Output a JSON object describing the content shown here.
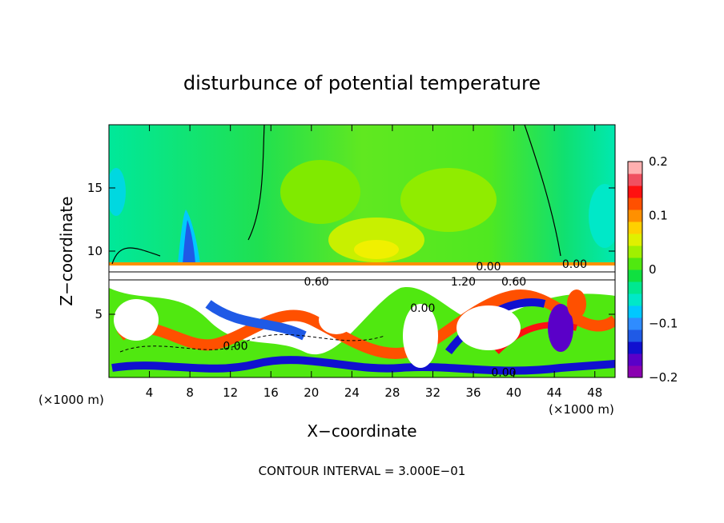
{
  "chart_data": {
    "type": "heatmap",
    "title": "disturbunce of potential temperature",
    "xlabel": "X−coordinate",
    "ylabel": "Z−coordinate",
    "x_unit": "(×1000 m)",
    "x_unit_right": "(×1000 m)",
    "y_unit": "(×1000 m)",
    "xlim": [
      0,
      50
    ],
    "ylim": [
      0,
      20
    ],
    "x_ticks": [
      4,
      8,
      12,
      16,
      20,
      24,
      28,
      32,
      36,
      40,
      44,
      48
    ],
    "y_ticks": [
      5,
      10,
      15
    ],
    "colorbar": {
      "range": [
        -0.2,
        0.2
      ],
      "ticks": [
        0.2,
        0.1,
        0,
        -0.1,
        -0.2
      ],
      "tick_labels": [
        "0.2",
        "0.1",
        "0",
        "−0.1",
        "−0.2"
      ],
      "colors": [
        "#8a00b0",
        "#5a00c8",
        "#1010d0",
        "#1f5ae6",
        "#2f8cff",
        "#00c8ff",
        "#00e8c8",
        "#00e890",
        "#10e040",
        "#50e810",
        "#a0f000",
        "#e0f000",
        "#ffd000",
        "#ff9000",
        "#ff5000",
        "#ff1010",
        "#f05060",
        "#ffb0b0"
      ]
    },
    "contour_labels": [
      {
        "text": "0.60",
        "x": 20.5,
        "y": 7.6
      },
      {
        "text": "1.20",
        "x": 35.0,
        "y": 7.6
      },
      {
        "text": "0.00",
        "x": 37.5,
        "y": 8.8
      },
      {
        "text": "0.60",
        "x": 40.0,
        "y": 7.6
      },
      {
        "text": "0.00",
        "x": 46.0,
        "y": 9.0
      },
      {
        "text": "0.00",
        "x": 31.0,
        "y": 5.5
      },
      {
        "text": "0.00",
        "x": 12.5,
        "y": 2.5
      },
      {
        "text": "0.00",
        "x": 39.0,
        "y": 0.4
      }
    ],
    "contour_interval": "CONTOUR INTERVAL = 3.000E−01"
  }
}
